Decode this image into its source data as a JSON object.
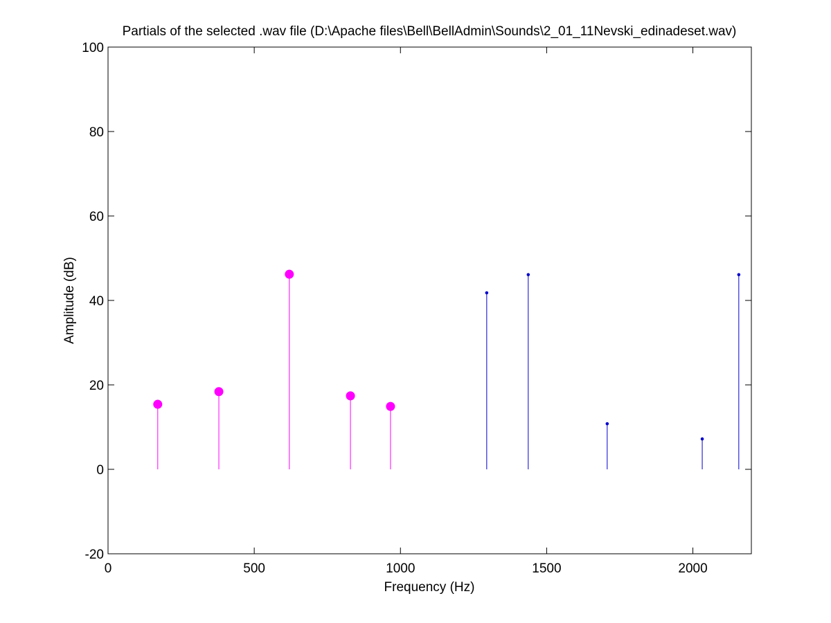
{
  "chart_data": {
    "type": "stem",
    "title": "Partials of the selected .wav file (D:\\Apache files\\Bell\\BellAdmin\\Sounds\\2_01_11Nevski_edinadeset.wav)",
    "x_label": "Frequency (Hz)",
    "y_label": "Amplitude (dB)",
    "xlim": [
      0,
      2200
    ],
    "xticks": [
      0,
      500,
      1000,
      1500,
      2000
    ],
    "ylim": [
      -20,
      100
    ],
    "yticks": [
      -20,
      0,
      20,
      40,
      60,
      80,
      100
    ],
    "grid": false,
    "series": [
      {
        "color": "#ff00ff",
        "marker_size": 6,
        "x": [
          170,
          379,
          620,
          829,
          966
        ],
        "values": [
          15.4,
          18.4,
          46.2,
          17.4,
          14.9
        ]
      },
      {
        "color": "#0000cc",
        "marker_size": 1.8,
        "x": [
          1295,
          1437,
          1707,
          2032,
          2157
        ],
        "values": [
          41.8,
          46.1,
          10.8,
          7.2,
          46.1
        ]
      }
    ]
  }
}
